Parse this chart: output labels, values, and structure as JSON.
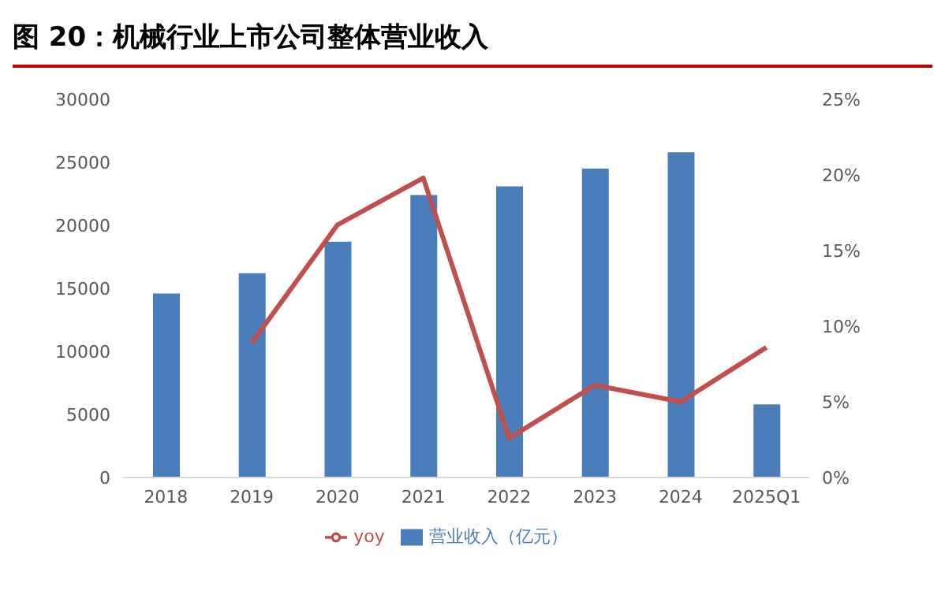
{
  "chart_data": {
    "type": "bar",
    "title": "图 20：机械行业上市公司整体营业收入",
    "categories": [
      "2018",
      "2019",
      "2020",
      "2021",
      "2022",
      "2023",
      "2024",
      "2025Q1"
    ],
    "series": [
      {
        "name": "营业收入（亿元）",
        "color": "#4a7ebb",
        "values": [
          14600,
          16200,
          18700,
          22400,
          23100,
          24500,
          25800,
          5800
        ]
      },
      {
        "name": "yoy",
        "type": "line",
        "axis": "y2",
        "color": "#c0504d",
        "values": [
          null,
          8.9,
          16.7,
          19.8,
          2.6,
          6.1,
          5.0,
          8.6
        ]
      }
    ],
    "ylim": [
      0,
      30000
    ],
    "yticks": [
      0,
      5000,
      10000,
      15000,
      20000,
      25000,
      30000
    ],
    "y2lim": [
      0,
      25
    ],
    "y2ticks": [
      {
        "value": 0,
        "label": "0%"
      },
      {
        "value": 5,
        "label": "5%"
      },
      {
        "value": 10,
        "label": "10%"
      },
      {
        "value": 15,
        "label": "15%"
      },
      {
        "value": 20,
        "label": "20%"
      },
      {
        "value": 25,
        "label": "25%"
      }
    ],
    "grid": false,
    "legend": "bottom",
    "marker": "none",
    "line_style": "solid"
  }
}
